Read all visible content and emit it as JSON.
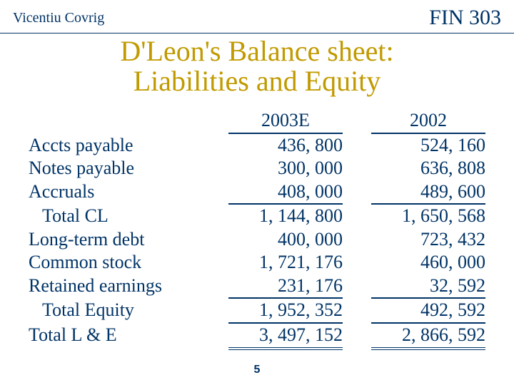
{
  "header": {
    "author": "Vicentiu Covrig",
    "course": "FIN 303"
  },
  "title": {
    "line1": "D'Leon's Balance sheet:",
    "line2": "Liabilities and Equity"
  },
  "columns": {
    "c1": "2003E",
    "c2": "2002"
  },
  "rows": {
    "r0": {
      "label": "Accts payable",
      "c1": "436, 800",
      "c2": "524, 160"
    },
    "r1": {
      "label": "Notes payable",
      "c1": "300, 000",
      "c2": "636, 808"
    },
    "r2": {
      "label": "Accruals",
      "c1": "408, 000",
      "c2": "489, 600"
    },
    "r3": {
      "label": "   Total CL",
      "c1": "1, 144, 800",
      "c2": "1, 650, 568"
    },
    "r4": {
      "label": "Long-term debt",
      "c1": "400, 000",
      "c2": "723, 432"
    },
    "r5": {
      "label": "Common stock",
      "c1": "1, 721, 176",
      "c2": "460, 000"
    },
    "r6": {
      "label": "Retained earnings",
      "c1": "231, 176",
      "c2": "32, 592"
    },
    "r7": {
      "label": "   Total Equity",
      "c1": "1, 952, 352",
      "c2": "492, 592"
    },
    "r8": {
      "label": "Total L & E",
      "c1": "3, 497, 152",
      "c2": "2, 866, 592"
    }
  },
  "page": "5",
  "style": {
    "text_color": "#003366",
    "title_color": "#c19a00",
    "background": "#ffffff",
    "body_fontsize": 26,
    "title_fontsize": 40,
    "author_fontsize": 20,
    "course_fontsize": 30
  }
}
